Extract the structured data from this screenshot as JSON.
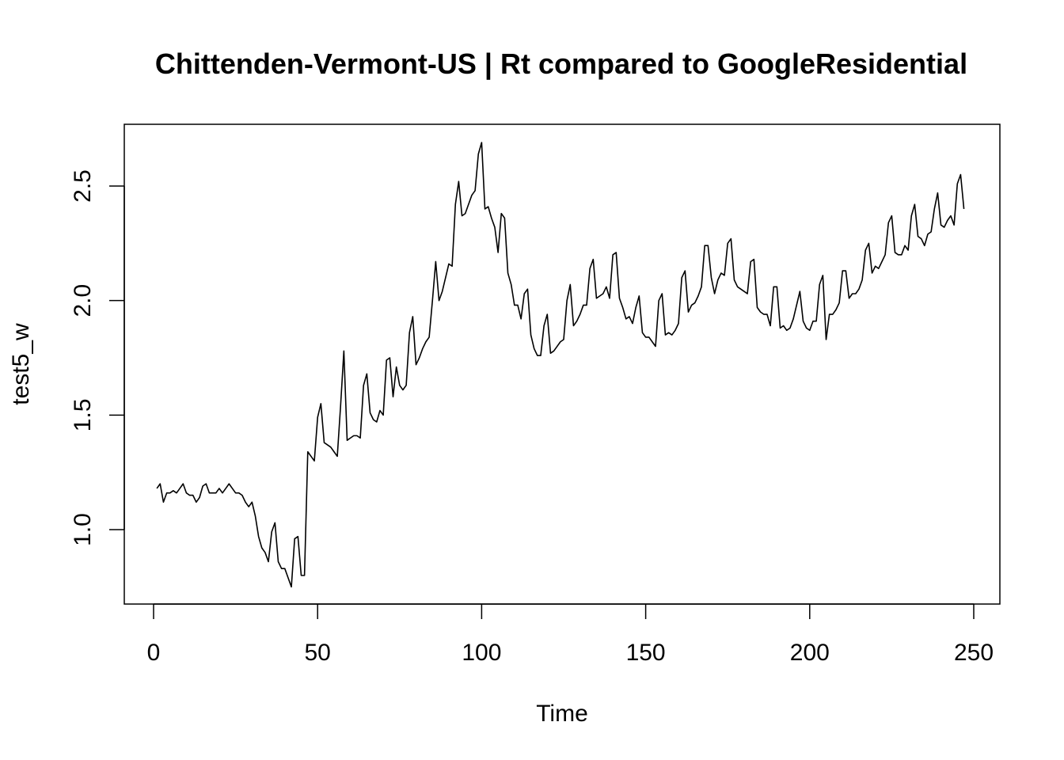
{
  "chart_data": {
    "type": "line",
    "title": "Chittenden-Vermont-US | Rt compared to GoogleResidential",
    "xlabel": "Time",
    "ylabel": "test5_w",
    "xlim": [
      1,
      248
    ],
    "ylim": [
      0.75,
      2.7
    ],
    "x_ticks": [
      "0",
      "50",
      "100",
      "150",
      "200",
      "250"
    ],
    "y_ticks": [
      "1.0",
      "1.5",
      "2.0",
      "2.5"
    ],
    "grid": false,
    "series": [
      {
        "color": "#000000",
        "values": [
          1.18,
          1.2,
          1.12,
          1.16,
          1.16,
          1.17,
          1.16,
          1.18,
          1.2,
          1.16,
          1.15,
          1.15,
          1.12,
          1.14,
          1.19,
          1.2,
          1.16,
          1.16,
          1.16,
          1.18,
          1.16,
          1.18,
          1.2,
          1.18,
          1.16,
          1.16,
          1.15,
          1.12,
          1.1,
          1.12,
          1.06,
          0.97,
          0.92,
          0.9,
          0.86,
          0.99,
          1.03,
          0.86,
          0.83,
          0.83,
          0.79,
          0.75,
          0.96,
          0.97,
          0.8,
          0.8,
          1.34,
          1.32,
          1.3,
          1.49,
          1.55,
          1.38,
          1.37,
          1.36,
          1.34,
          1.32,
          1.54,
          1.78,
          1.39,
          1.4,
          1.41,
          1.41,
          1.4,
          1.63,
          1.68,
          1.51,
          1.48,
          1.47,
          1.52,
          1.5,
          1.74,
          1.75,
          1.58,
          1.71,
          1.63,
          1.61,
          1.63,
          1.86,
          1.93,
          1.72,
          1.75,
          1.79,
          1.82,
          1.84,
          2.0,
          2.17,
          2.0,
          2.04,
          2.1,
          2.16,
          2.15,
          2.42,
          2.52,
          2.37,
          2.38,
          2.42,
          2.46,
          2.48,
          2.64,
          2.69,
          2.4,
          2.41,
          2.36,
          2.32,
          2.21,
          2.38,
          2.36,
          2.12,
          2.07,
          1.98,
          1.98,
          1.92,
          2.03,
          2.05,
          1.85,
          1.79,
          1.76,
          1.76,
          1.89,
          1.94,
          1.77,
          1.78,
          1.8,
          1.82,
          1.83,
          2.0,
          2.07,
          1.89,
          1.91,
          1.94,
          1.98,
          1.98,
          2.14,
          2.18,
          2.01,
          2.02,
          2.03,
          2.06,
          2.01,
          2.2,
          2.21,
          2.01,
          1.97,
          1.92,
          1.93,
          1.9,
          1.97,
          2.02,
          1.86,
          1.84,
          1.84,
          1.82,
          1.8,
          2.0,
          2.03,
          1.85,
          1.86,
          1.85,
          1.87,
          1.9,
          2.1,
          2.13,
          1.95,
          1.98,
          1.99,
          2.02,
          2.06,
          2.24,
          2.24,
          2.1,
          2.03,
          2.09,
          2.12,
          2.11,
          2.25,
          2.27,
          2.09,
          2.06,
          2.05,
          2.04,
          2.03,
          2.17,
          2.18,
          1.97,
          1.95,
          1.94,
          1.94,
          1.89,
          2.06,
          2.06,
          1.88,
          1.89,
          1.87,
          1.88,
          1.92,
          1.98,
          2.04,
          1.91,
          1.88,
          1.87,
          1.91,
          1.91,
          2.07,
          2.11,
          1.83,
          1.94,
          1.94,
          1.96,
          1.99,
          2.13,
          2.13,
          2.01,
          2.03,
          2.03,
          2.05,
          2.09,
          2.22,
          2.25,
          2.12,
          2.15,
          2.14,
          2.17,
          2.2,
          2.34,
          2.37,
          2.21,
          2.2,
          2.2,
          2.24,
          2.22,
          2.37,
          2.42,
          2.28,
          2.27,
          2.24,
          2.29,
          2.3,
          2.4,
          2.47,
          2.33,
          2.32,
          2.35,
          2.37,
          2.33,
          2.51,
          2.55,
          2.4
        ]
      }
    ]
  }
}
